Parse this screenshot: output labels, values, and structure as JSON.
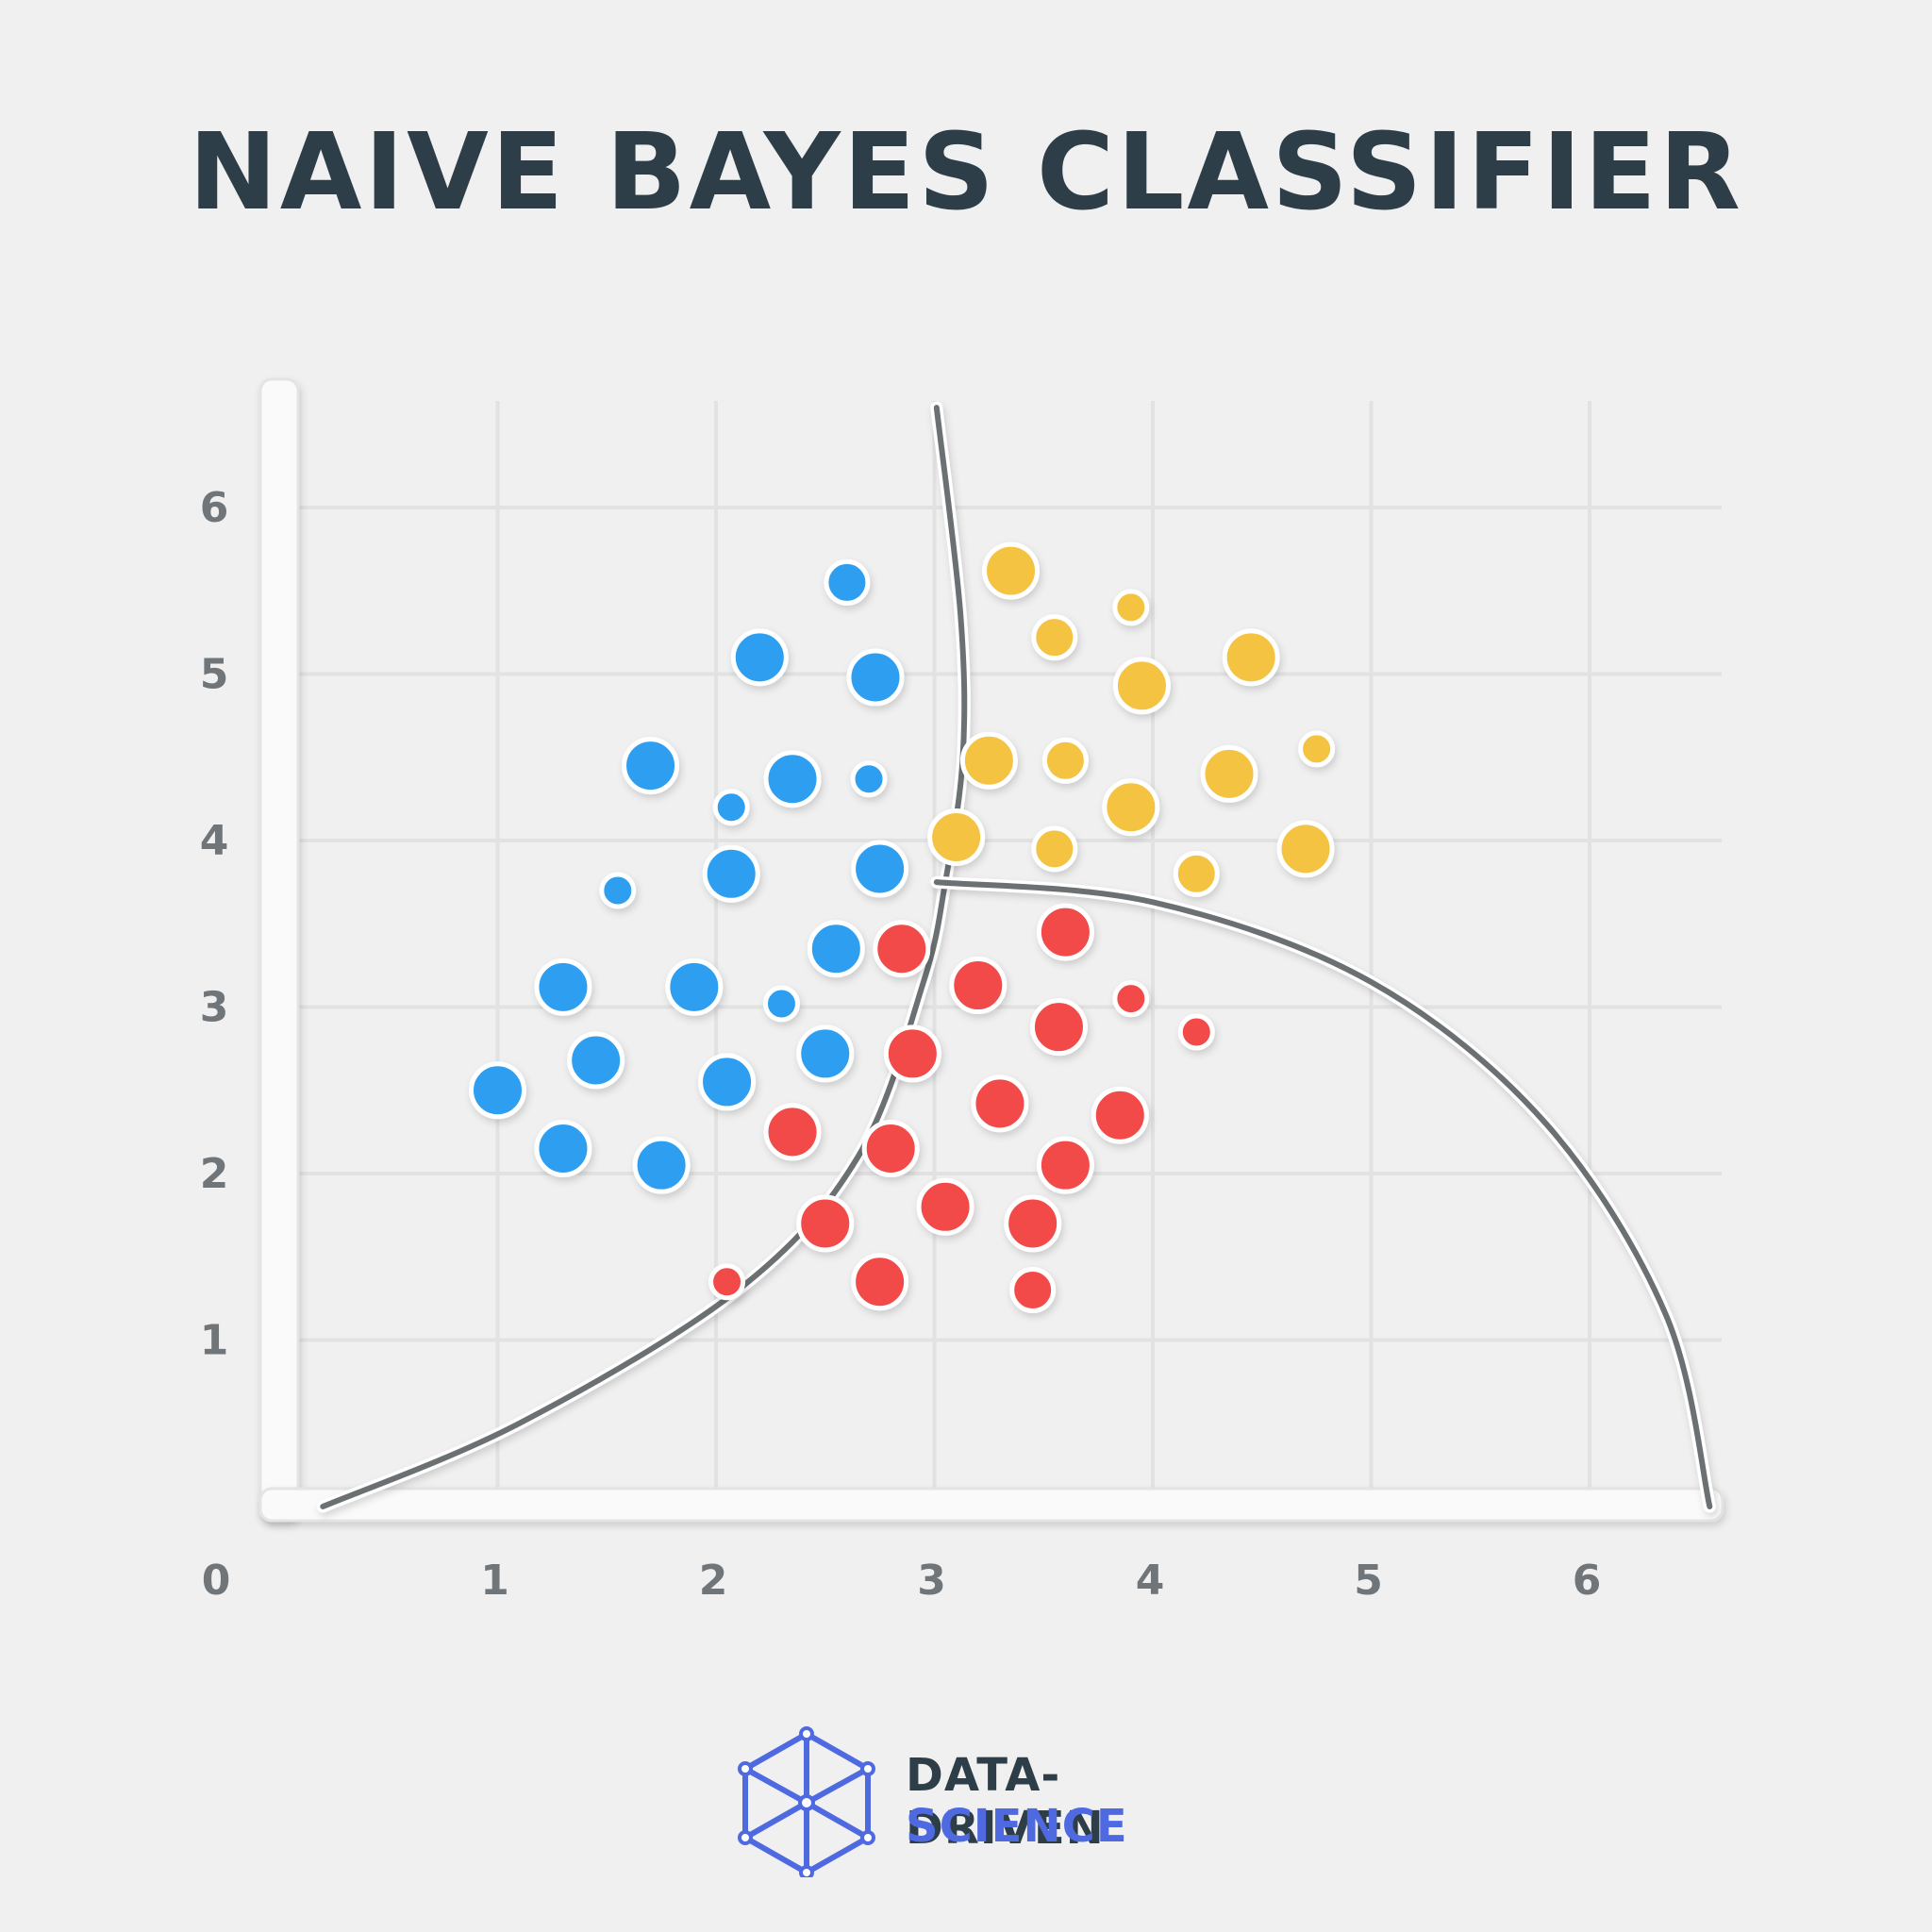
{
  "title": "NAIVE BAYES CLASSIFIER",
  "chart_data": {
    "type": "scatter",
    "title": "NAIVE BAYES CLASSIFIER",
    "xlabel": "",
    "ylabel": "",
    "xlim": [
      0,
      6.6
    ],
    "ylim": [
      0,
      6.6
    ],
    "x_ticks": [
      "0",
      "1",
      "2",
      "3",
      "4",
      "5",
      "6"
    ],
    "y_ticks": [
      "1",
      "2",
      "3",
      "4",
      "5",
      "6"
    ],
    "grid": true,
    "series": [
      {
        "color": "#2f9ff0",
        "points": [
          [
            2.6,
            5.55
          ],
          [
            2.2,
            5.1
          ],
          [
            2.73,
            4.98
          ],
          [
            1.7,
            4.45
          ],
          [
            2.35,
            4.37
          ],
          [
            2.7,
            4.37
          ],
          [
            2.07,
            4.2
          ],
          [
            1.55,
            3.7
          ],
          [
            2.07,
            3.8
          ],
          [
            2.75,
            3.83
          ],
          [
            2.55,
            3.35
          ],
          [
            1.3,
            3.12
          ],
          [
            1.9,
            3.12
          ],
          [
            2.3,
            3.02
          ],
          [
            1.45,
            2.68
          ],
          [
            2.05,
            2.55
          ],
          [
            2.5,
            2.72
          ],
          [
            1.0,
            2.5
          ],
          [
            1.3,
            2.15
          ],
          [
            1.75,
            2.05
          ]
        ]
      },
      {
        "color": "#f5c343",
        "points": [
          [
            3.35,
            5.62
          ],
          [
            3.9,
            5.4
          ],
          [
            3.55,
            5.22
          ],
          [
            4.45,
            5.1
          ],
          [
            3.95,
            4.93
          ],
          [
            3.25,
            4.48
          ],
          [
            3.6,
            4.48
          ],
          [
            4.35,
            4.4
          ],
          [
            4.75,
            4.55
          ],
          [
            3.9,
            4.2
          ],
          [
            3.1,
            4.02
          ],
          [
            3.55,
            3.95
          ],
          [
            4.7,
            3.95
          ],
          [
            4.2,
            3.8
          ]
        ]
      },
      {
        "color": "#f24a49",
        "points": [
          [
            2.85,
            3.35
          ],
          [
            3.6,
            3.45
          ],
          [
            3.2,
            3.13
          ],
          [
            3.9,
            3.05
          ],
          [
            3.57,
            2.88
          ],
          [
            4.2,
            2.85
          ],
          [
            2.9,
            2.72
          ],
          [
            3.3,
            2.42
          ],
          [
            3.85,
            2.35
          ],
          [
            2.35,
            2.25
          ],
          [
            2.8,
            2.15
          ],
          [
            3.6,
            2.05
          ],
          [
            3.05,
            1.8
          ],
          [
            2.5,
            1.7
          ],
          [
            3.45,
            1.7
          ],
          [
            2.05,
            1.35
          ],
          [
            2.75,
            1.35
          ],
          [
            3.45,
            1.3
          ]
        ]
      }
    ],
    "point_sizes": [
      "m",
      "l",
      "l",
      "l",
      "l",
      "s",
      "s",
      "s",
      "l",
      "l",
      "l",
      "l",
      "l",
      "s",
      "l",
      "l",
      "l",
      "l",
      "l",
      "l",
      "l",
      "s",
      "m",
      "l",
      "l",
      "l",
      "m",
      "l",
      "s",
      "l",
      "l",
      "m",
      "l",
      "m",
      "l",
      "l",
      "l",
      "s",
      "l",
      "s",
      "l",
      "l",
      "l",
      "l",
      "l",
      "l",
      "l",
      "l",
      "l",
      "s",
      "l",
      "m"
    ],
    "decision_boundaries": [
      {
        "points": [
          [
            0.2,
            0.0
          ],
          [
            1.1,
            0.5
          ],
          [
            2.1,
            1.3
          ],
          [
            2.65,
            2.1
          ],
          [
            2.95,
            3.15
          ],
          [
            3.05,
            3.75
          ],
          [
            3.13,
            4.5
          ],
          [
            3.12,
            5.35
          ],
          [
            3.01,
            6.6
          ]
        ]
      },
      {
        "points": [
          [
            3.01,
            3.75
          ],
          [
            4.0,
            3.63
          ],
          [
            5.0,
            3.15
          ],
          [
            5.8,
            2.3
          ],
          [
            6.35,
            1.15
          ],
          [
            6.55,
            0.0
          ]
        ]
      }
    ]
  },
  "brand": {
    "line1": "DATA-DRIVEN",
    "line2": "SCIENCE",
    "accent": "#4f6ae1",
    "logo_icon": "hexagon-cube-icon"
  }
}
